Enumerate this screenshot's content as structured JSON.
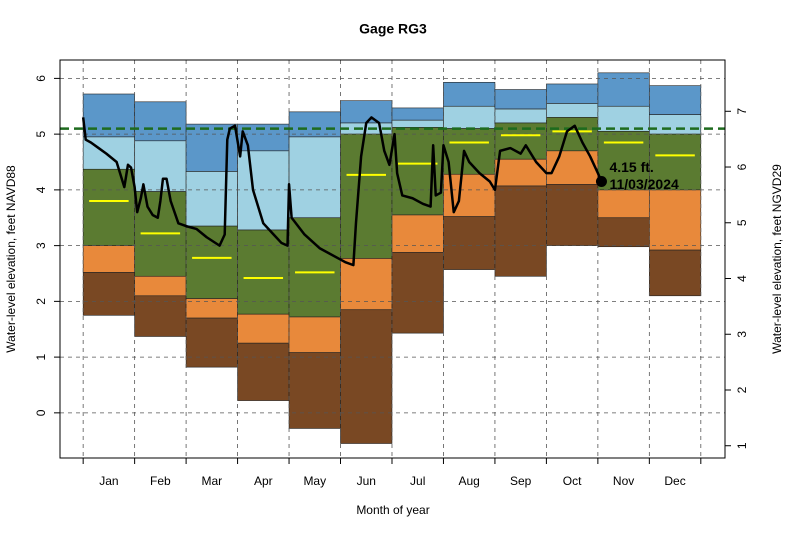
{
  "chart_data": {
    "type": "percentile-bands",
    "title": "Gage RG3",
    "x_label": "Month of year",
    "y_label": "Water-level elevation, feet NAVD88",
    "y2_label": "Water-level elevation, feet NGVD29",
    "categories": [
      "Jan",
      "Feb",
      "Mar",
      "Apr",
      "May",
      "Jun",
      "Jul",
      "Aug",
      "Sep",
      "Oct",
      "Nov",
      "Dec"
    ],
    "xlim": [
      -0.45,
      12.47
    ],
    "ylim": [
      -0.81,
      6.33
    ],
    "yticks": [
      0,
      1,
      2,
      3,
      4,
      5,
      6
    ],
    "y2lim": [
      0.78,
      7.92
    ],
    "y2ticks": [
      1,
      2,
      3,
      4,
      5,
      6,
      7
    ],
    "grid": true,
    "stats": {
      "max": [
        5.72,
        5.58,
        5.18,
        5.18,
        5.4,
        5.6,
        5.47,
        5.93,
        5.8,
        5.9,
        6.1,
        5.87
      ],
      "p90": [
        4.95,
        4.88,
        4.33,
        4.7,
        4.95,
        5.2,
        5.25,
        5.5,
        5.45,
        5.55,
        5.5,
        5.35
      ],
      "p75": [
        4.37,
        3.97,
        3.35,
        3.28,
        3.5,
        5.0,
        5.12,
        5.1,
        5.2,
        5.3,
        5.05,
        5.0
      ],
      "median": [
        3.8,
        3.22,
        2.78,
        2.42,
        2.52,
        4.27,
        4.47,
        4.85,
        4.98,
        5.05,
        4.85,
        4.62
      ],
      "p25": [
        3.0,
        2.45,
        2.05,
        1.77,
        1.72,
        2.77,
        3.55,
        4.28,
        4.55,
        4.7,
        4.0,
        4.0
      ],
      "p10": [
        2.52,
        2.1,
        1.7,
        1.25,
        1.08,
        1.85,
        2.88,
        3.52,
        4.07,
        4.1,
        3.5,
        2.92
      ],
      "min": [
        1.75,
        1.37,
        0.82,
        0.22,
        -0.28,
        -0.55,
        1.43,
        2.57,
        2.45,
        3.0,
        2.98,
        2.1
      ]
    },
    "band_colors": [
      "#5b97c9",
      "#9fd1e2",
      "#5b7b31",
      "#e8893b",
      "#794823"
    ],
    "median_color": "#ffff00",
    "reference_line": {
      "value": 5.1,
      "color": "#1e6b1e"
    },
    "line": {
      "color": "#000000",
      "x": [
        0,
        0.05,
        0.15,
        0.3,
        0.45,
        0.65,
        0.8,
        0.87,
        0.93,
        1.0,
        1.05,
        1.12,
        1.17,
        1.25,
        1.35,
        1.45,
        1.5,
        1.55,
        1.62,
        1.7,
        1.85,
        2.0,
        2.2,
        2.4,
        2.65,
        2.75,
        2.8,
        2.85,
        2.95,
        3.05,
        3.1,
        3.2,
        3.3,
        3.5,
        3.7,
        3.85,
        3.97,
        4.0,
        4.05,
        4.3,
        4.6,
        5.0,
        5.1,
        5.25,
        5.3,
        5.4,
        5.5,
        5.6,
        5.75,
        5.85,
        5.95,
        6.05,
        6.1,
        6.2,
        6.4,
        6.6,
        6.75,
        6.8,
        6.85,
        6.95,
        7.0,
        7.1,
        7.2,
        7.3,
        7.4,
        7.5,
        7.7,
        7.9,
        8.0,
        8.1,
        8.3,
        8.5,
        8.6,
        8.8,
        9.0,
        9.1,
        9.25,
        9.4,
        9.55,
        9.7,
        9.85,
        10.0,
        10.07
      ],
      "values": [
        5.3,
        4.9,
        4.85,
        4.75,
        4.65,
        4.5,
        4.05,
        4.45,
        4.4,
        4.05,
        3.6,
        3.85,
        4.1,
        3.7,
        3.55,
        3.5,
        3.8,
        4.2,
        4.2,
        3.8,
        3.4,
        3.35,
        3.3,
        3.15,
        3.0,
        3.2,
        4.9,
        5.1,
        5.15,
        4.6,
        5.05,
        4.8,
        4.0,
        3.4,
        3.2,
        3.05,
        3.0,
        4.1,
        3.5,
        3.2,
        2.95,
        2.75,
        2.7,
        2.65,
        3.4,
        4.6,
        5.2,
        5.3,
        5.2,
        4.7,
        4.45,
        5.0,
        4.3,
        3.9,
        3.85,
        3.75,
        3.7,
        4.8,
        3.9,
        3.95,
        4.8,
        4.5,
        3.6,
        3.8,
        4.7,
        4.5,
        4.3,
        4.15,
        4.0,
        4.7,
        4.75,
        4.65,
        4.8,
        4.5,
        4.3,
        4.3,
        4.6,
        5.05,
        5.15,
        4.85,
        4.6,
        4.3,
        4.15
      ]
    },
    "annotation": {
      "value_text": "4.15 ft.",
      "date": "11/03/2024",
      "x": 10.07,
      "value": 4.15
    }
  }
}
